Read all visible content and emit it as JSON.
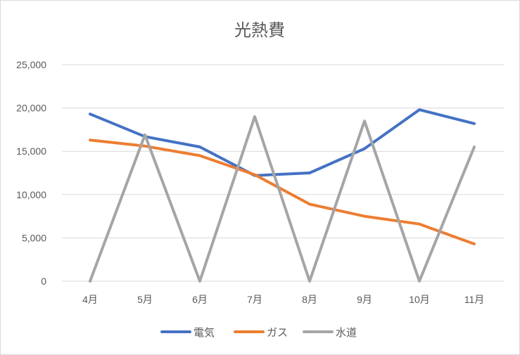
{
  "chart_data": {
    "type": "line",
    "title": "光熱費",
    "categories": [
      "4月",
      "5月",
      "6月",
      "7月",
      "8月",
      "9月",
      "10月",
      "11月"
    ],
    "ylim": [
      0,
      25000
    ],
    "yticks": [
      0,
      5000,
      10000,
      15000,
      20000,
      25000
    ],
    "ytick_labels": [
      "0",
      "5,000",
      "10,000",
      "15,000",
      "20,000",
      "25,000"
    ],
    "grid": true,
    "legend_position": "bottom",
    "series": [
      {
        "name": "電気",
        "color": "#4472c4",
        "values": [
          19300,
          16700,
          15500,
          12200,
          12500,
          15300,
          19800,
          18200
        ]
      },
      {
        "name": "ガス",
        "color": "#ed7d31",
        "values": [
          16300,
          15600,
          14500,
          12300,
          8900,
          7500,
          6600,
          4300
        ]
      },
      {
        "name": "水道",
        "color": "#a5a5a5",
        "values": [
          0,
          16900,
          0,
          19000,
          0,
          18500,
          0,
          15500
        ]
      }
    ]
  }
}
